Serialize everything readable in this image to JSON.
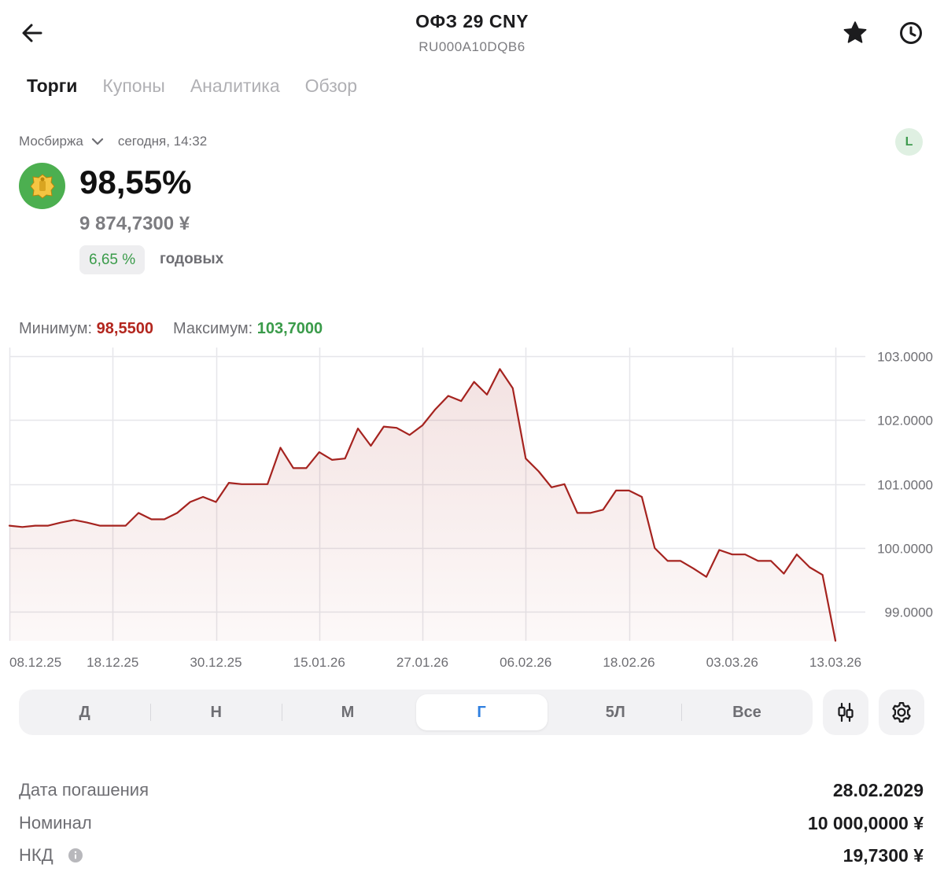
{
  "header": {
    "title": "ОФЗ 29 CNY",
    "isin": "RU000A10DQB6",
    "icons": {
      "back": "arrow-left-icon",
      "favorite": "star-icon",
      "history": "clock-icon"
    }
  },
  "tabs": [
    {
      "label": "Торги",
      "active": true
    },
    {
      "label": "Купоны",
      "active": false
    },
    {
      "label": "Аналитика",
      "active": false
    },
    {
      "label": "Обзор",
      "active": false
    }
  ],
  "quote": {
    "exchange": "Мосбиржа",
    "timestamp": "сегодня, 14:32",
    "badge": "L",
    "price_percent": "98,55%",
    "price_absolute": "9 874,7300 ¥",
    "yield_value": "6,65 %",
    "yield_label": "годовых"
  },
  "range": {
    "min_label": "Минимум:",
    "min_value": "98,5500",
    "max_label": "Максимум:",
    "max_value": "103,7000"
  },
  "colors": {
    "line": "#a5231f",
    "min": "#b3261e",
    "max": "#3a9b4a",
    "accent": "#2f7fe0"
  },
  "chart_data": {
    "type": "area",
    "x_tick_labels": [
      "08.12.25",
      "18.12.25",
      "30.12.25",
      "15.01.26",
      "27.01.26",
      "06.02.26",
      "18.02.26",
      "03.03.26",
      "13.03.26"
    ],
    "y_tick_labels": [
      "103.0000",
      "102.0000",
      "101.0000",
      "100.0000",
      "99.0000"
    ],
    "y_ticks": [
      103,
      102,
      101,
      100,
      99
    ],
    "ylim": [
      98.55,
      103.1
    ],
    "grid": true,
    "series": [
      {
        "values": [
          100.35,
          100.33,
          100.35,
          100.35,
          100.4,
          100.44,
          100.4,
          100.35,
          100.35,
          100.35,
          100.55,
          100.45,
          100.45,
          100.55,
          100.72,
          100.8,
          100.72,
          101.02,
          101.0,
          101.0,
          101.0,
          101.57,
          101.25,
          101.25,
          101.5,
          101.38,
          101.4,
          101.87,
          101.6,
          101.9,
          101.88,
          101.77,
          101.92,
          102.17,
          102.38,
          102.3,
          102.6,
          102.4,
          102.8,
          102.5,
          101.4,
          101.2,
          100.95,
          101.0,
          100.55,
          100.55,
          100.6,
          100.9,
          100.9,
          100.8,
          100.0,
          99.8,
          99.8,
          99.68,
          99.55,
          99.97,
          99.9,
          99.9,
          99.8,
          99.8,
          99.6,
          99.9,
          99.7,
          99.58,
          98.55
        ]
      }
    ]
  },
  "periods": [
    {
      "label": "Д",
      "active": false
    },
    {
      "label": "Н",
      "active": false
    },
    {
      "label": "М",
      "active": false
    },
    {
      "label": "Г",
      "active": true
    },
    {
      "label": "5Л",
      "active": false
    },
    {
      "label": "Все",
      "active": false
    }
  ],
  "tools": {
    "candles": "candlestick-icon",
    "settings": "gear-icon"
  },
  "details": [
    {
      "label": "Дата погашения",
      "value": "28.02.2029"
    },
    {
      "label": "Номинал",
      "value": "10 000,0000 ¥"
    },
    {
      "label": "НКД",
      "value": "19,7300 ¥",
      "info_icon": "info-icon"
    }
  ]
}
